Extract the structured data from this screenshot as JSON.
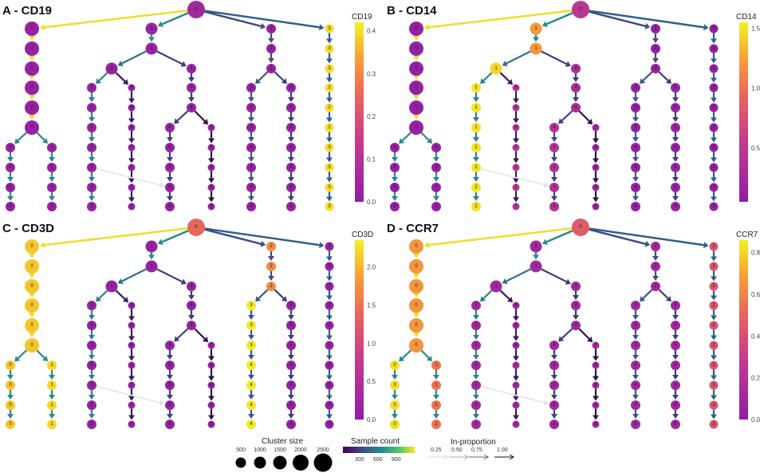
{
  "panels": [
    {
      "title": "A - CD19",
      "gene": "CD19",
      "range": [
        0,
        0.42
      ],
      "ticks": [
        "0.0",
        "0.1",
        "0.2",
        "0.3",
        "0.4"
      ],
      "tick_values": [
        0,
        0.1,
        0.2,
        0.3,
        0.4
      ],
      "values": [
        [
          0.05
        ],
        [
          0.02,
          0.02,
          0.02,
          0.4
        ],
        [
          0.02,
          0.02,
          0.02,
          0.4
        ],
        [
          0.02,
          0.02,
          0.02,
          0.02,
          0.4
        ],
        [
          0.02,
          0.02,
          0.02,
          0.02,
          0.02,
          0.02,
          0.4
        ],
        [
          0.02,
          0.02,
          0.02,
          0.02,
          0.02,
          0.02,
          0.4
        ],
        [
          0.02,
          0.02,
          0.02,
          0.02,
          0.02,
          0.02,
          0.02,
          0.4
        ],
        [
          0.02,
          0.02,
          0.02,
          0.02,
          0.02,
          0.02,
          0.02,
          0.02,
          0.4
        ],
        [
          0.02,
          0.02,
          0.02,
          0.02,
          0.02,
          0.02,
          0.02,
          0.02,
          0.4
        ],
        [
          0.02,
          0.02,
          0.02,
          0.02,
          0.02,
          0.02,
          0.02,
          0.02,
          0.4
        ],
        [
          0.02,
          0.02,
          0.02,
          0.02,
          0.02,
          0.02,
          0.02,
          0.02,
          0.4
        ]
      ]
    },
    {
      "title": "B - CD14",
      "gene": "CD14",
      "range": [
        0.05,
        1.55
      ],
      "ticks": [
        "0.5",
        "1.0",
        "1.5"
      ],
      "tick_values": [
        0.5,
        1.0,
        1.5
      ],
      "values": [
        [
          0.45
        ],
        [
          0.1,
          1.2,
          0.1,
          0.1
        ],
        [
          0.1,
          1.2,
          0.1,
          0.1
        ],
        [
          0.1,
          1.45,
          0.3,
          0.1,
          0.1
        ],
        [
          0.1,
          1.5,
          0.45,
          0.3,
          0.1,
          0.15,
          0.1
        ],
        [
          0.1,
          1.5,
          0.45,
          0.3,
          0.1,
          0.15,
          0.1
        ],
        [
          0.1,
          1.5,
          0.45,
          0.4,
          0.2,
          0.1,
          0.15,
          0.1
        ],
        [
          0.1,
          0.1,
          1.5,
          0.45,
          0.4,
          0.2,
          0.1,
          0.15,
          0.1
        ],
        [
          0.1,
          0.1,
          1.5,
          0.45,
          0.4,
          0.2,
          0.1,
          0.15,
          0.1
        ],
        [
          0.1,
          0.1,
          1.5,
          0.45,
          0.4,
          0.2,
          0.1,
          0.15,
          0.1
        ],
        [
          0.1,
          0.1,
          1.5,
          0.45,
          0.4,
          0.2,
          0.1,
          0.15,
          0.1
        ]
      ]
    },
    {
      "title": "C - CD3D",
      "gene": "CD3D",
      "range": [
        0,
        2.35
      ],
      "ticks": [
        "0.0",
        "0.5",
        "1.0",
        "1.5",
        "2.0"
      ],
      "tick_values": [
        0,
        0.5,
        1.0,
        1.5,
        2.0
      ],
      "values": [
        [
          1.4
        ],
        [
          2.1,
          0.1,
          1.7,
          0.1
        ],
        [
          2.1,
          0.1,
          1.7,
          0.1
        ],
        [
          2.1,
          0.1,
          0.1,
          1.7,
          0.1
        ],
        [
          2.1,
          0.1,
          0.1,
          0.1,
          2.3,
          0.1,
          0.1
        ],
        [
          2.1,
          0.1,
          0.1,
          0.1,
          2.3,
          0.1,
          0.1
        ],
        [
          2.1,
          0.1,
          0.1,
          0.1,
          0.1,
          2.3,
          0.1,
          0.1
        ],
        [
          2.1,
          2.2,
          0.1,
          0.1,
          0.1,
          0.1,
          2.3,
          0.1,
          0.1
        ],
        [
          2.1,
          2.2,
          0.1,
          0.1,
          0.1,
          0.1,
          2.3,
          0.1,
          0.1
        ],
        [
          2.1,
          2.2,
          0.1,
          0.1,
          0.1,
          0.1,
          2.3,
          0.1,
          0.1
        ],
        [
          2.1,
          2.2,
          0.1,
          0.1,
          0.1,
          0.1,
          2.3,
          0.1,
          0.1
        ]
      ]
    },
    {
      "title": "D - CCR7",
      "gene": "CCR7",
      "range": [
        0,
        0.86
      ],
      "ticks": [
        "0.0",
        "0.2",
        "0.4",
        "0.6",
        "0.8"
      ],
      "tick_values": [
        0,
        0.2,
        0.4,
        0.6,
        0.8
      ],
      "values": [
        [
          0.45
        ],
        [
          0.65,
          0.1,
          0.1,
          0.42
        ],
        [
          0.65,
          0.1,
          0.1,
          0.42
        ],
        [
          0.65,
          0.1,
          0.1,
          0.1,
          0.42
        ],
        [
          0.65,
          0.1,
          0.1,
          0.1,
          0.1,
          0.1,
          0.42
        ],
        [
          0.65,
          0.1,
          0.1,
          0.1,
          0.1,
          0.1,
          0.42
        ],
        [
          0.65,
          0.1,
          0.1,
          0.1,
          0.1,
          0.1,
          0.1,
          0.42
        ],
        [
          0.82,
          0.55,
          0.1,
          0.1,
          0.1,
          0.1,
          0.1,
          0.1,
          0.42
        ],
        [
          0.82,
          0.55,
          0.1,
          0.1,
          0.1,
          0.1,
          0.1,
          0.1,
          0.42
        ],
        [
          0.82,
          0.55,
          0.1,
          0.1,
          0.1,
          0.1,
          0.1,
          0.1,
          0.42
        ],
        [
          0.82,
          0.55,
          0.1,
          0.1,
          0.1,
          0.1,
          0.1,
          0.1,
          0.42
        ]
      ]
    }
  ],
  "tree": {
    "labels": [
      [
        "0"
      ],
      [
        "0",
        "1",
        "2",
        "3"
      ],
      [
        "0",
        "1",
        "2",
        "3"
      ],
      [
        "0",
        "1",
        "4",
        "2",
        "3"
      ],
      [
        "0",
        "1",
        "6",
        "4",
        "3",
        "5",
        "2"
      ],
      [
        "0",
        "1",
        "6",
        "4",
        "3",
        "5",
        "2"
      ],
      [
        "0",
        "1",
        "6",
        "4",
        "7",
        "3",
        "5",
        "2"
      ],
      [
        "0",
        "1",
        "2",
        "7",
        "5",
        "8",
        "4",
        "6",
        "3"
      ],
      [
        "0",
        "1",
        "2",
        "7",
        "5",
        "8",
        "4",
        "6",
        "3"
      ],
      [
        "0",
        "1",
        "2",
        "7",
        "5",
        "8",
        "4",
        "6",
        "3"
      ],
      [
        "0",
        "1",
        "2",
        "7",
        "5",
        "8",
        "4",
        "6",
        "3"
      ]
    ],
    "parents": [
      [],
      [
        0,
        0,
        0,
        0
      ],
      [
        0,
        1,
        2,
        3
      ],
      [
        0,
        1,
        1,
        2,
        3
      ],
      [
        0,
        1,
        1,
        2,
        3,
        3,
        4
      ],
      [
        0,
        1,
        2,
        3,
        4,
        5,
        6
      ],
      [
        0,
        1,
        2,
        3,
        3,
        4,
        5,
        6
      ],
      [
        0,
        0,
        1,
        2,
        3,
        4,
        5,
        6,
        7
      ],
      [
        0,
        1,
        2,
        3,
        4,
        5,
        6,
        7,
        8
      ],
      [
        0,
        1,
        2,
        3,
        4,
        5,
        6,
        7,
        8
      ],
      [
        0,
        1,
        2,
        3,
        4,
        5,
        6,
        7,
        8
      ]
    ],
    "cross_edge": {
      "from": [
        8,
        2
      ],
      "to": [
        9,
        4
      ]
    }
  },
  "legend": {
    "cluster_size_title": "Cluster size",
    "cluster_sizes": [
      "500",
      "1000",
      "1500",
      "2000",
      "2500"
    ],
    "sample_count_title": "Sample count",
    "sample_count_ticks": [
      "300",
      "600",
      "900"
    ],
    "in_proportion_title": "In-proportion",
    "in_proportion_ticks": [
      "0.25",
      "0.50",
      "0.75",
      "1.00"
    ]
  }
}
